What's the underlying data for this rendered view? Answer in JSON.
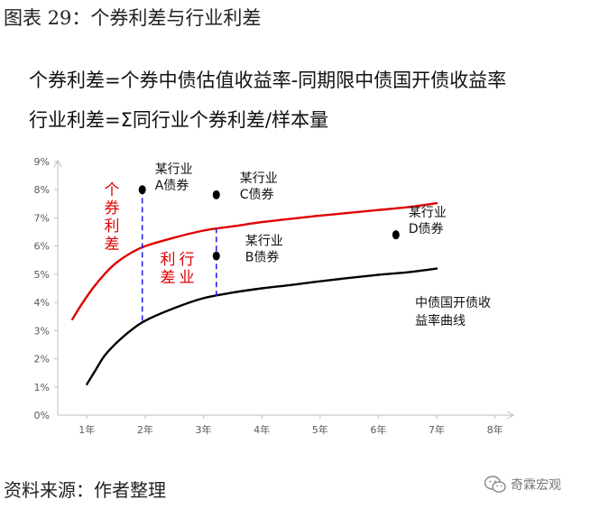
{
  "page": {
    "figure_title": "图表 29：个券利差与行业利差",
    "formula_1": "个券利差=个券中债估值收益率-同期限中债国开债收益率",
    "formula_2": "行业利差=Σ同行业个券利差/样本量",
    "source": "资料来源：作者整理",
    "brand": "奇霖宏观",
    "brand_icon": "wechat-icon"
  },
  "chart_data": {
    "type": "line",
    "x_ticks": [
      "1年",
      "2年",
      "3年",
      "4年",
      "5年",
      "6年",
      "7年",
      "8年"
    ],
    "y_ticks": [
      "0%",
      "1%",
      "2%",
      "3%",
      "4%",
      "5%",
      "6%",
      "7%",
      "8%",
      "9%"
    ],
    "xlim": [
      0.5,
      8.3
    ],
    "ylim": [
      0,
      9
    ],
    "grid": false,
    "colors": {
      "industry_curve": "#e00000",
      "cdb_curve": "#000000",
      "guide": "#1a1ae6",
      "axis": "#bfbfbf",
      "tick_text": "#595959"
    },
    "series": [
      {
        "key": "industry_curve",
        "x": [
          0.75,
          0.9,
          1.1,
          1.3,
          1.5,
          1.75,
          2.0,
          2.5,
          3.0,
          3.5,
          4.0,
          4.5,
          5.0,
          5.5,
          6.0,
          6.5,
          7.0
        ],
        "y": [
          3.4,
          3.9,
          4.5,
          5.0,
          5.4,
          5.75,
          6.0,
          6.3,
          6.55,
          6.7,
          6.85,
          6.97,
          7.08,
          7.18,
          7.28,
          7.38,
          7.52
        ]
      },
      {
        "key": "cdb_curve",
        "x": [
          1.0,
          1.15,
          1.3,
          1.5,
          1.75,
          2.0,
          2.5,
          3.0,
          3.5,
          4.0,
          4.5,
          5.0,
          5.5,
          6.0,
          6.5,
          7.0
        ],
        "y": [
          1.1,
          1.6,
          2.1,
          2.55,
          3.0,
          3.35,
          3.8,
          4.15,
          4.35,
          4.5,
          4.62,
          4.75,
          4.87,
          4.98,
          5.07,
          5.2
        ]
      }
    ],
    "points": [
      {
        "key": "A",
        "x": 1.95,
        "y": 8.0,
        "line1": "某行业",
        "line2": "A债券"
      },
      {
        "key": "C",
        "x": 3.22,
        "y": 7.82,
        "line1": "某行业",
        "line2": "C债券"
      },
      {
        "key": "B",
        "x": 3.22,
        "y": 5.65,
        "line1": "某行业",
        "line2": "B债券"
      },
      {
        "key": "D",
        "x": 6.3,
        "y": 6.4,
        "line1": "某行业",
        "line2": "D债券"
      }
    ],
    "guides": [
      {
        "key": "A",
        "x": 1.95,
        "y_from": 3.35,
        "y_to": 8.0
      },
      {
        "key": "B",
        "x": 3.22,
        "y_from": 4.22,
        "y_to": 6.6
      }
    ],
    "annotations": {
      "individual_spread": [
        "个",
        "券",
        "利",
        "差"
      ],
      "industry_spread": [
        "利",
        "行",
        "差",
        "业"
      ],
      "cdb_curve_label": [
        "中债国开债收",
        "益率曲线"
      ]
    }
  }
}
